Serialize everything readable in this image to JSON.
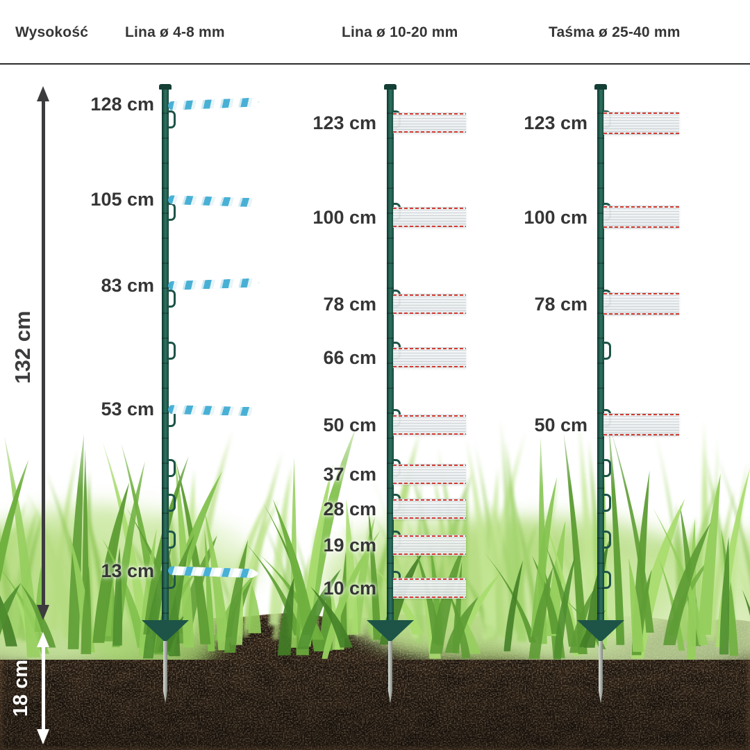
{
  "header": {
    "height_label": "Wysokość",
    "columns": [
      "Lina ø 4-8 mm",
      "Lina ø 10-20 mm",
      "Taśma ø 25-40 mm"
    ]
  },
  "measures": {
    "above_ground": "132 cm",
    "below_ground": "18 cm"
  },
  "posts": [
    {
      "wire_type": "rope",
      "levels": [
        "128 cm",
        "105 cm",
        "83 cm",
        "53 cm",
        "13 cm"
      ]
    },
    {
      "wire_type": "tape",
      "levels": [
        "123 cm",
        "100 cm",
        "78 cm",
        "66 cm",
        "50 cm",
        "37 cm",
        "28 cm",
        "19 cm",
        "10 cm"
      ]
    },
    {
      "wire_type": "tape",
      "levels": [
        "123 cm",
        "100 cm",
        "78 cm",
        "50 cm"
      ]
    }
  ],
  "colors": {
    "text-dark": "#353535",
    "arrow-dark": "#3c3c3e",
    "post-green": "#1d5447",
    "rope-blue": "#49b0d5",
    "tape-red": "#d23b30",
    "white": "#ffffff"
  }
}
